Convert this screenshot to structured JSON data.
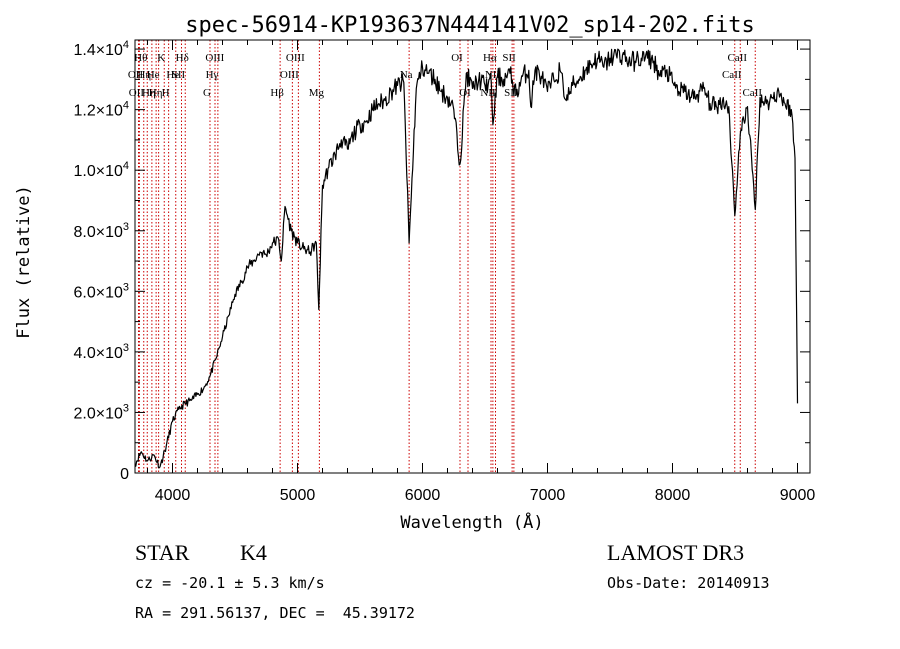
{
  "chart_data": {
    "type": "line",
    "title": "spec-56914-KP193637N444141V02_sp14-202.fits",
    "xlabel": "Wavelength (Å)",
    "ylabel": "Flux (relative)",
    "xlim": [
      3700,
      9100
    ],
    "ylim": [
      0,
      14300
    ],
    "x_ticks": [
      4000,
      5000,
      6000,
      7000,
      8000,
      9000
    ],
    "x_tick_labels": [
      "4000",
      "5000",
      "6000",
      "7000",
      "8000",
      "9000"
    ],
    "y_ticks": [
      0,
      2000,
      4000,
      6000,
      8000,
      10000,
      12000,
      14000
    ],
    "y_tick_labels": [
      {
        "mantissa": "0",
        "exp": ""
      },
      {
        "mantissa": "2.0×10",
        "exp": "3"
      },
      {
        "mantissa": "4.0×10",
        "exp": "3"
      },
      {
        "mantissa": "6.0×10",
        "exp": "3"
      },
      {
        "mantissa": "8.0×10",
        "exp": "3"
      },
      {
        "mantissa": "1.0×10",
        "exp": "4"
      },
      {
        "mantissa": "1.2×10",
        "exp": "4"
      },
      {
        "mantissa": "1.4×10",
        "exp": "4"
      }
    ],
    "series": [
      {
        "name": "spectrum",
        "color": "#000000",
        "x": [
          3700,
          3750,
          3800,
          3850,
          3900,
          3950,
          4000,
          4050,
          4100,
          4150,
          4200,
          4250,
          4300,
          4350,
          4400,
          4450,
          4500,
          4550,
          4600,
          4650,
          4700,
          4750,
          4800,
          4850,
          4870,
          4900,
          4950,
          5000,
          5050,
          5100,
          5150,
          5170,
          5200,
          5250,
          5300,
          5350,
          5400,
          5450,
          5500,
          5550,
          5600,
          5650,
          5700,
          5750,
          5800,
          5850,
          5893,
          5950,
          6000,
          6050,
          6100,
          6150,
          6200,
          6250,
          6300,
          6350,
          6400,
          6450,
          6500,
          6550,
          6563,
          6600,
          6650,
          6700,
          6750,
          6800,
          6850,
          6866,
          6900,
          6950,
          7000,
          7050,
          7100,
          7150,
          7200,
          7250,
          7300,
          7350,
          7400,
          7450,
          7500,
          7550,
          7600,
          7650,
          7700,
          7750,
          7800,
          7850,
          7900,
          7950,
          8000,
          8050,
          8100,
          8150,
          8200,
          8250,
          8300,
          8350,
          8400,
          8450,
          8498,
          8542,
          8600,
          8662,
          8700,
          8750,
          8800,
          8850,
          8900,
          8950,
          8980,
          9000
        ],
        "values": [
          300,
          700,
          400,
          600,
          200,
          900,
          1700,
          2100,
          2300,
          2400,
          2600,
          2800,
          3200,
          3800,
          4500,
          5200,
          5900,
          6300,
          6800,
          7000,
          7300,
          7200,
          7600,
          7700,
          7000,
          8800,
          8000,
          7600,
          7400,
          7300,
          7600,
          5400,
          9500,
          10100,
          10500,
          11000,
          10700,
          11200,
          11500,
          11600,
          12000,
          12200,
          12300,
          12600,
          12800,
          12900,
          7600,
          12700,
          13400,
          13200,
          13000,
          12600,
          12400,
          12000,
          10200,
          13200,
          12700,
          13000,
          12800,
          12900,
          11500,
          13100,
          13000,
          13200,
          12500,
          13100,
          13300,
          12100,
          13300,
          13100,
          12600,
          13000,
          13300,
          12300,
          12800,
          13000,
          13300,
          13500,
          13700,
          13400,
          13700,
          13800,
          13800,
          13600,
          13600,
          13700,
          13700,
          13600,
          13100,
          13300,
          12900,
          12600,
          12600,
          12400,
          12500,
          12700,
          12200,
          12100,
          12300,
          12100,
          8500,
          11200,
          12100,
          8700,
          12400,
          12200,
          12400,
          12600,
          12200,
          12000,
          10400,
          2300
        ]
      }
    ],
    "spectral_lines": [
      {
        "wavelength": 3728,
        "label": "OII",
        "row": 2
      },
      {
        "wavelength": 3735,
        "label": "OII",
        "row": 3
      },
      {
        "wavelength": 3770,
        "label": "Hθ",
        "row": 1
      },
      {
        "wavelength": 3798,
        "label": "Hη",
        "row": 2
      },
      {
        "wavelength": 3835,
        "label": "Hη",
        "row": 3
      },
      {
        "wavelength": 3869,
        "label": "He",
        "row": 2
      },
      {
        "wavelength": 3889,
        "label": "Hη",
        "row": 3
      },
      {
        "wavelength": 3934,
        "label": "K",
        "row": 1
      },
      {
        "wavelength": 3969,
        "label": "H",
        "row": 3
      },
      {
        "wavelength": 4026,
        "label": "He",
        "row": 2
      },
      {
        "wavelength": 4072,
        "label": "SII",
        "row": 2
      },
      {
        "wavelength": 4102,
        "label": "Hδ",
        "row": 1
      },
      {
        "wavelength": 4300,
        "label": "G",
        "row": 3
      },
      {
        "wavelength": 4340,
        "label": "Hγ",
        "row": 2
      },
      {
        "wavelength": 4363,
        "label": "OIII",
        "row": 1
      },
      {
        "wavelength": 4861,
        "label": "Hβ",
        "row": 3
      },
      {
        "wavelength": 4959,
        "label": "OIII",
        "row": 2
      },
      {
        "wavelength": 5007,
        "label": "OIII",
        "row": 1
      },
      {
        "wavelength": 5175,
        "label": "Mg",
        "row": 3
      },
      {
        "wavelength": 5893,
        "label": "Na",
        "row": 2
      },
      {
        "wavelength": 6300,
        "label": "OI",
        "row": 1
      },
      {
        "wavelength": 6364,
        "label": "OI",
        "row": 3
      },
      {
        "wavelength": 6548,
        "label": "NII",
        "row": 3
      },
      {
        "wavelength": 6563,
        "label": "Hα",
        "row": 1
      },
      {
        "wavelength": 6584,
        "label": "NII",
        "row": 2
      },
      {
        "wavelength": 6717,
        "label": "SII",
        "row": 1
      },
      {
        "wavelength": 6731,
        "label": "SII",
        "row": 3
      },
      {
        "wavelength": 8498,
        "label": "CaII",
        "row": 2
      },
      {
        "wavelength": 8542,
        "label": "CaII",
        "row": 1
      },
      {
        "wavelength": 8662,
        "label": "CaII",
        "row": 3
      }
    ],
    "line_color": "#cc0000"
  },
  "info": {
    "object_class": "STAR",
    "subclass": "K4",
    "survey": "LAMOST DR3",
    "redshift_text": "cz = -20.1 ± 5.3 km/s",
    "obs_date_text": "Obs-Date: 20140913",
    "coords_text": "RA = 291.56137, DEC =  45.39172"
  }
}
